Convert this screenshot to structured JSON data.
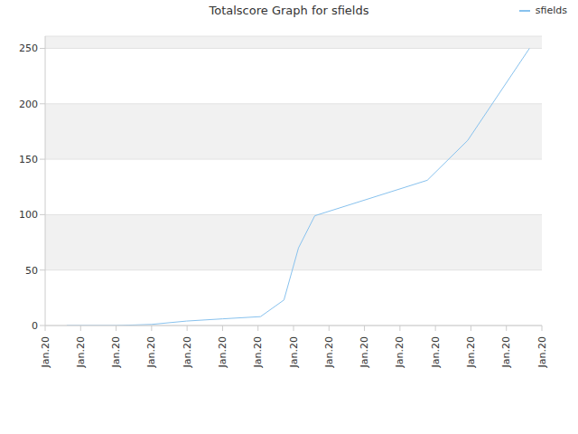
{
  "chart_data": {
    "type": "line",
    "title": "Totalscore Graph for sfields",
    "x": [
      0.61,
      2,
      3,
      3.98,
      5,
      6.07,
      6.73,
      7.14,
      7.6,
      10.77,
      11.91,
      13.65
    ],
    "series": [
      {
        "name": "sfields",
        "color": "#88c2ee",
        "values": [
          0,
          0,
          1,
          4,
          6,
          8,
          23,
          70,
          99,
          131,
          167,
          250
        ]
      }
    ],
    "xlim": [
      0,
      14
    ],
    "xticks": [
      {
        "value": 0,
        "label": "Jan.20"
      },
      {
        "value": 1,
        "label": "Jan.20"
      },
      {
        "value": 2,
        "label": "Jan.20"
      },
      {
        "value": 3,
        "label": "Jan.20"
      },
      {
        "value": 4,
        "label": "Jan.20"
      },
      {
        "value": 5,
        "label": "Jan.20"
      },
      {
        "value": 6,
        "label": "Jan.20"
      },
      {
        "value": 7,
        "label": "Jan.20"
      },
      {
        "value": 8,
        "label": "Jan.20"
      },
      {
        "value": 9,
        "label": "Jan.20"
      },
      {
        "value": 10,
        "label": "Jan.20"
      },
      {
        "value": 11,
        "label": "Jan.20"
      },
      {
        "value": 12,
        "label": "Jan.20"
      },
      {
        "value": 13,
        "label": "Jan.20"
      },
      {
        "value": 14,
        "label": "Jan.20"
      }
    ],
    "ylim": [
      0,
      261
    ],
    "yticks": [
      0,
      50,
      100,
      150,
      200,
      250
    ],
    "grid": true,
    "legend": "top-right"
  }
}
